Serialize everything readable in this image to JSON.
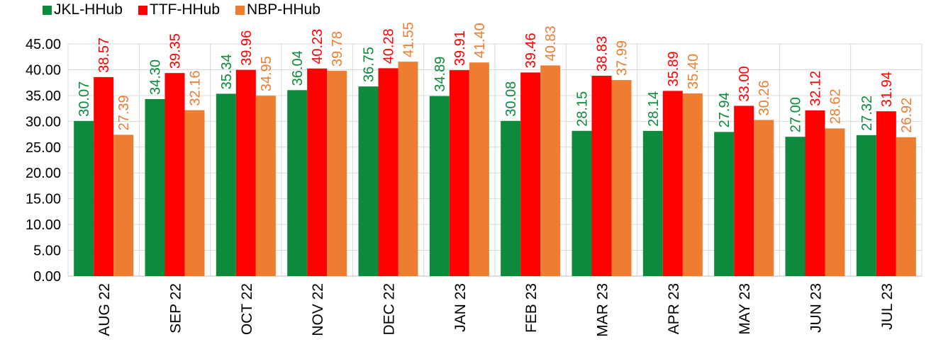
{
  "chart_data": {
    "type": "bar",
    "title": "",
    "xlabel": "",
    "ylabel": "",
    "ylim": [
      0,
      45
    ],
    "y_ticks": [
      "0.00",
      "5.00",
      "10.00",
      "15.00",
      "20.00",
      "25.00",
      "30.00",
      "35.00",
      "40.00",
      "45.00"
    ],
    "grid": true,
    "legend_position": "top-left",
    "categories": [
      "AUG 22",
      "SEP 22",
      "OCT 22",
      "NOV 22",
      "DEC 22",
      "JAN 23",
      "FEB 23",
      "MAR 23",
      "APR 23",
      "MAY 23",
      "JUN 23",
      "JUL 23"
    ],
    "series": [
      {
        "name": "JKL-HHub",
        "color": "#0d8a3c",
        "values": [
          30.07,
          34.3,
          35.34,
          36.04,
          36.75,
          34.89,
          30.08,
          28.15,
          28.14,
          27.94,
          27.0,
          27.32
        ],
        "labels": [
          "30.07",
          "34.30",
          "35.34",
          "36.04",
          "36.75",
          "34.89",
          "30.08",
          "28.15",
          "28.14",
          "27.94",
          "27.00",
          "27.32"
        ]
      },
      {
        "name": "TTF-HHub",
        "color": "#ff0000",
        "values": [
          38.57,
          39.35,
          39.96,
          40.23,
          40.28,
          39.91,
          39.46,
          38.83,
          35.89,
          33.0,
          32.12,
          31.94
        ],
        "labels": [
          "38.57",
          "39.35",
          "39.96",
          "40.23",
          "40.28",
          "39.91",
          "39.46",
          "38.83",
          "35.89",
          "33.00",
          "32.12",
          "31.94"
        ]
      },
      {
        "name": "NBP-HHub",
        "color": "#ed7d31",
        "values": [
          27.39,
          32.16,
          34.95,
          39.78,
          41.55,
          41.4,
          40.83,
          37.99,
          35.4,
          30.26,
          28.62,
          26.92
        ],
        "labels": [
          "27.39",
          "32.16",
          "34.95",
          "39.78",
          "41.55",
          "41.40",
          "40.83",
          "37.99",
          "35.40",
          "30.26",
          "28.62",
          "26.92"
        ]
      }
    ]
  },
  "label_colors": [
    "#0d8a3c",
    "#ff0000",
    "#ed7d31"
  ]
}
